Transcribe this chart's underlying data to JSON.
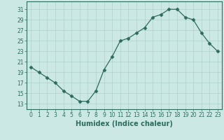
{
  "x": [
    0,
    1,
    2,
    3,
    4,
    5,
    6,
    7,
    8,
    9,
    10,
    11,
    12,
    13,
    14,
    15,
    16,
    17,
    18,
    19,
    20,
    21,
    22,
    23
  ],
  "y": [
    20,
    19,
    18,
    17,
    15.5,
    14.5,
    13.5,
    13.5,
    15.5,
    19.5,
    22,
    25,
    25.5,
    26.5,
    27.5,
    29.5,
    30,
    31,
    31,
    29.5,
    29,
    26.5,
    24.5,
    23
  ],
  "line_color": "#2d6b5e",
  "marker": "D",
  "marker_size": 2.5,
  "bg_color": "#cce8e5",
  "grid_color": "#aed0cc",
  "xlabel": "Humidex (Indice chaleur)",
  "xlim": [
    -0.5,
    23.5
  ],
  "ylim": [
    12,
    32.5
  ],
  "yticks": [
    13,
    15,
    17,
    19,
    21,
    23,
    25,
    27,
    29,
    31
  ],
  "xticks": [
    0,
    1,
    2,
    3,
    4,
    5,
    6,
    7,
    8,
    9,
    10,
    11,
    12,
    13,
    14,
    15,
    16,
    17,
    18,
    19,
    20,
    21,
    22,
    23
  ],
  "tick_fontsize": 5.5,
  "label_fontsize": 7
}
